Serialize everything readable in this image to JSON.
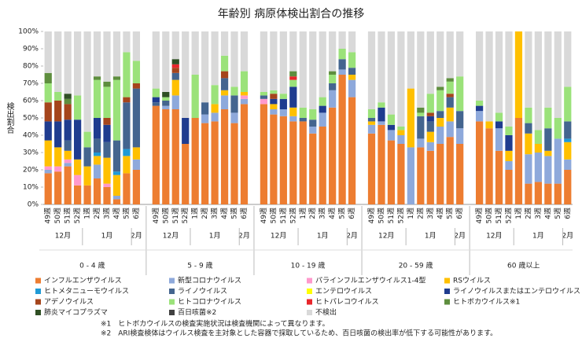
{
  "chart_data": {
    "type": "stacked-bar",
    "title": "年齢別 病原体検出割合の推移",
    "ylabel": "検出割合",
    "ylim": [
      0,
      100
    ],
    "yticks": [
      {
        "value": 0,
        "label": "0%"
      },
      {
        "value": 10,
        "label": "10%"
      },
      {
        "value": 20,
        "label": "20%"
      },
      {
        "value": 30,
        "label": "30%"
      },
      {
        "value": 40,
        "label": "40%"
      },
      {
        "value": 50,
        "label": "50%"
      },
      {
        "value": 60,
        "label": "60%"
      },
      {
        "value": 70,
        "label": "70%"
      },
      {
        "value": 80,
        "label": "80%"
      },
      {
        "value": 90,
        "label": "90%"
      },
      {
        "value": 100,
        "label": "100%"
      }
    ],
    "groups": [
      {
        "label": "0 - 4 歳",
        "months": [
          {
            "label": "12月",
            "weeks": [
              "49週",
              "50週",
              "51週",
              "52週"
            ]
          },
          {
            "label": "1月",
            "weeks": [
              "1週",
              "2週",
              "3週",
              "4週",
              "5週"
            ]
          },
          {
            "label": "2月",
            "weeks": [
              "6週"
            ]
          }
        ]
      },
      {
        "label": "5 - 9 歳",
        "months": [
          {
            "label": "12月",
            "weeks": [
              "49週",
              "50週",
              "51週",
              "52週"
            ]
          },
          {
            "label": "1月",
            "weeks": [
              "1週",
              "2週",
              "3週",
              "4週",
              "5週"
            ]
          },
          {
            "label": "2月",
            "weeks": [
              "6週"
            ]
          }
        ]
      },
      {
        "label": "10 - 19 歳",
        "months": [
          {
            "label": "12月",
            "weeks": [
              "49週",
              "50週",
              "51週",
              "52週"
            ]
          },
          {
            "label": "1月",
            "weeks": [
              "1週",
              "2週",
              "3週",
              "4週",
              "5週"
            ]
          },
          {
            "label": "2月",
            "weeks": [
              "6週"
            ]
          }
        ]
      },
      {
        "label": "20 - 59 歳",
        "months": [
          {
            "label": "12月",
            "weeks": [
              "49週",
              "50週",
              "51週",
              "52週"
            ]
          },
          {
            "label": "1月",
            "weeks": [
              "1週",
              "2週",
              "3週",
              "4週",
              "5週"
            ]
          },
          {
            "label": "2月",
            "weeks": [
              "6週"
            ]
          }
        ]
      },
      {
        "label": "60 歳以上",
        "months": [
          {
            "label": "12月",
            "weeks": [
              "49週",
              "50週",
              "51週",
              "52週"
            ]
          },
          {
            "label": "1月",
            "weeks": [
              "1週",
              "2週",
              "3週",
              "4週",
              "5週"
            ]
          },
          {
            "label": "2月",
            "weeks": [
              "6週"
            ]
          }
        ]
      }
    ],
    "series": [
      {
        "name": "インフルエンザウイルス",
        "color": "#ED7D31",
        "values": [
          18,
          19,
          22,
          11,
          11,
          15,
          10,
          3,
          18,
          20,
          57,
          55,
          55,
          35,
          50,
          47,
          48,
          55,
          47,
          58,
          58,
          52,
          51,
          48,
          48,
          41,
          45,
          56,
          75,
          62,
          41,
          46,
          37,
          35,
          0,
          33,
          31,
          35,
          39,
          35,
          48,
          44,
          31,
          20,
          50,
          12,
          13,
          12,
          12,
          20
        ]
      },
      {
        "name": "新型コロナウイルス",
        "color": "#8EA9DB",
        "values": [
          2,
          0,
          2,
          0,
          0,
          8,
          0,
          2,
          0,
          6,
          0,
          2,
          8,
          0,
          0,
          5,
          5,
          8,
          6,
          3,
          0,
          3,
          4,
          3,
          0,
          4,
          8,
          10,
          3,
          10,
          5,
          2,
          6,
          5,
          33,
          5,
          5,
          10,
          9,
          9,
          6,
          0,
          13,
          5,
          0,
          17,
          17,
          16,
          26,
          6
        ]
      },
      {
        "name": "パラインフルエンザウイルス1-4型",
        "color": "#FF99CC",
        "values": [
          2,
          3,
          2,
          6,
          0,
          0,
          2,
          0,
          0,
          0,
          0,
          0,
          0,
          0,
          0,
          0,
          0,
          0,
          0,
          2,
          3,
          0,
          0,
          0,
          0,
          0,
          0,
          0,
          0,
          0,
          0,
          0,
          0,
          0,
          0,
          0,
          0,
          0,
          0,
          0,
          0,
          0,
          0,
          0,
          0,
          0,
          0,
          0,
          0,
          0
        ]
      },
      {
        "name": "RSウイルス",
        "color": "#FFC000",
        "values": [
          15,
          11,
          5,
          9,
          11,
          5,
          15,
          12,
          10,
          7,
          0,
          0,
          9,
          0,
          0,
          0,
          5,
          3,
          0,
          2,
          0,
          3,
          0,
          5,
          0,
          0,
          0,
          0,
          0,
          3,
          2,
          0,
          0,
          3,
          34,
          0,
          6,
          5,
          8,
          0,
          0,
          4,
          0,
          6,
          50,
          12,
          5,
          3,
          0,
          10
        ]
      },
      {
        "name": "ヒトメタニューモウイルス",
        "color": "#1F9AD6",
        "values": [
          0,
          0,
          0,
          0,
          0,
          2,
          0,
          2,
          4,
          0,
          0,
          0,
          0,
          0,
          0,
          0,
          0,
          0,
          0,
          0,
          0,
          0,
          0,
          0,
          0,
          0,
          0,
          0,
          0,
          0,
          0,
          0,
          0,
          0,
          0,
          0,
          0,
          0,
          0,
          0,
          0,
          0,
          0,
          0,
          0,
          0,
          0,
          0,
          0,
          2
        ]
      },
      {
        "name": "ライノウイルス",
        "color": "#44658F",
        "values": [
          0,
          0,
          6,
          0,
          11,
          8,
          9,
          18,
          27,
          34,
          2,
          3,
          4,
          0,
          0,
          7,
          0,
          7,
          10,
          0,
          2,
          0,
          0,
          0,
          2,
          4,
          0,
          4,
          6,
          4,
          2,
          0,
          0,
          0,
          0,
          13,
          6,
          4,
          6,
          10,
          0,
          0,
          0,
          0,
          0,
          6,
          0,
          13,
          0,
          10
        ]
      },
      {
        "name": "エンテロウイルス",
        "color": "#FFFF00",
        "values": [
          0,
          0,
          0,
          0,
          0,
          0,
          0,
          0,
          0,
          0,
          0,
          0,
          0,
          0,
          0,
          0,
          0,
          0,
          0,
          0,
          0,
          0,
          0,
          0,
          0,
          0,
          0,
          0,
          0,
          0,
          0,
          0,
          0,
          0,
          0,
          0,
          0,
          0,
          0,
          0,
          0,
          0,
          0,
          0,
          0,
          0,
          0,
          0,
          0,
          0
        ]
      },
      {
        "name": "ライノウイルスまたはエンテロウイルス",
        "color": "#1F3C8F",
        "values": [
          11,
          15,
          12,
          23,
          0,
          12,
          10,
          0,
          0,
          0,
          3,
          0,
          0,
          15,
          0,
          0,
          0,
          0,
          0,
          0,
          0,
          3,
          6,
          12,
          0,
          0,
          4,
          0,
          0,
          0,
          0,
          8,
          3,
          0,
          0,
          0,
          3,
          0,
          0,
          0,
          3,
          0,
          4,
          9,
          0,
          0,
          0,
          0,
          0,
          0
        ]
      },
      {
        "name": "アデノウイルス",
        "color": "#A5451C",
        "values": [
          11,
          12,
          9,
          0,
          0,
          0,
          4,
          0,
          3,
          3,
          0,
          0,
          3,
          0,
          0,
          0,
          0,
          4,
          0,
          0,
          0,
          3,
          0,
          0,
          0,
          0,
          0,
          0,
          0,
          0,
          0,
          0,
          0,
          0,
          0,
          0,
          2,
          0,
          2,
          0,
          0,
          0,
          0,
          0,
          0,
          0,
          0,
          0,
          0,
          0
        ]
      },
      {
        "name": "ヒトコロナウイルス",
        "color": "#9BE27A",
        "values": [
          11,
          5,
          0,
          14,
          9,
          22,
          18,
          35,
          26,
          13,
          5,
          2,
          0,
          0,
          25,
          0,
          11,
          9,
          5,
          12,
          2,
          2,
          3,
          4,
          6,
          6,
          5,
          5,
          6,
          9,
          5,
          3,
          6,
          2,
          0,
          2,
          11,
          12,
          7,
          20,
          3,
          0,
          5,
          5,
          0,
          9,
          8,
          12,
          12,
          20
        ]
      },
      {
        "name": "ヒトパレコウイルス",
        "color": "#E8262B",
        "values": [
          0,
          0,
          0,
          0,
          0,
          0,
          0,
          0,
          0,
          0,
          0,
          0,
          2,
          0,
          0,
          0,
          0,
          0,
          0,
          0,
          0,
          0,
          0,
          2,
          0,
          0,
          0,
          0,
          0,
          0,
          0,
          0,
          0,
          0,
          0,
          0,
          0,
          0,
          0,
          0,
          0,
          0,
          0,
          0,
          0,
          0,
          0,
          0,
          0,
          0
        ]
      },
      {
        "name": "ヒトボカウイルス※1",
        "color": "#5E8E3E",
        "values": [
          6,
          0,
          3,
          0,
          0,
          2,
          3,
          2,
          0,
          0,
          0,
          0,
          0,
          0,
          0,
          0,
          0,
          0,
          0,
          0,
          0,
          0,
          0,
          3,
          0,
          0,
          0,
          2,
          0,
          0,
          0,
          0,
          0,
          0,
          0,
          3,
          0,
          2,
          2,
          0,
          0,
          0,
          0,
          0,
          0,
          0,
          0,
          0,
          0,
          0
        ]
      },
      {
        "name": "肺炎マイコプラズマ",
        "color": "#2F4F24",
        "values": [
          0,
          0,
          3,
          0,
          0,
          0,
          0,
          0,
          0,
          0,
          0,
          3,
          3,
          0,
          0,
          0,
          0,
          0,
          0,
          0,
          0,
          0,
          0,
          0,
          0,
          0,
          0,
          0,
          0,
          0,
          0,
          0,
          0,
          0,
          0,
          0,
          0,
          0,
          0,
          0,
          0,
          0,
          0,
          0,
          0,
          0,
          0,
          0,
          0,
          0
        ]
      },
      {
        "name": "百日咳菌※2",
        "color": "#404040",
        "values": [
          0,
          0,
          0,
          0,
          0,
          0,
          0,
          0,
          0,
          0,
          0,
          0,
          0,
          0,
          0,
          0,
          0,
          0,
          0,
          0,
          0,
          0,
          0,
          0,
          0,
          0,
          0,
          0,
          0,
          0,
          0,
          0,
          0,
          0,
          0,
          0,
          0,
          0,
          0,
          0,
          0,
          0,
          0,
          0,
          0,
          0,
          0,
          0,
          0,
          0
        ]
      },
      {
        "name": "不検出",
        "color": "#D9D9D9",
        "values": [
          24,
          35,
          36,
          37,
          58,
          26,
          29,
          26,
          12,
          17,
          33,
          35,
          16,
          50,
          25,
          41,
          31,
          14,
          32,
          23,
          35,
          34,
          36,
          23,
          44,
          45,
          38,
          23,
          10,
          12,
          45,
          41,
          48,
          55,
          33,
          44,
          36,
          32,
          27,
          26,
          40,
          52,
          47,
          55,
          0,
          44,
          57,
          44,
          50,
          32
        ]
      }
    ],
    "notes": [
      "※1　ヒトボカウイルスの検査実施状況は検査機関によって異なります。",
      "※2　ARI検査検体はウイルス検査を主対象とした容器で採取しているため、百日咳菌の検出率が低下する可能性があります。"
    ]
  }
}
